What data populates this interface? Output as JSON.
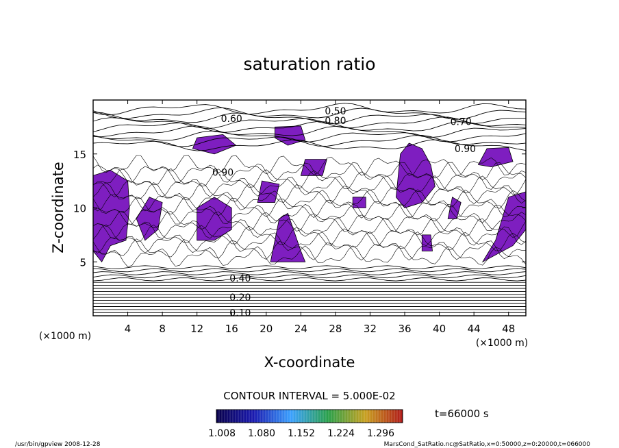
{
  "chart_data": {
    "type": "heatmap",
    "title": "saturation ratio",
    "xlabel": "X-coordinate",
    "ylabel": "Z-coordinate",
    "x_unit_left": "(×1000 m)",
    "x_unit_right": "(×1000 m)",
    "xlim": [
      0,
      50
    ],
    "ylim": [
      0,
      20
    ],
    "x_ticks": [
      "4",
      "8",
      "12",
      "16",
      "20",
      "24",
      "28",
      "32",
      "36",
      "40",
      "44",
      "48"
    ],
    "y_ticks": [
      "5",
      "10",
      "15"
    ],
    "contour_labels": [
      {
        "text": "0.50",
        "x": 28.0,
        "z": 19.0
      },
      {
        "text": "0.60",
        "x": 16.0,
        "z": 18.3
      },
      {
        "text": "0.80",
        "x": 28.0,
        "z": 18.1
      },
      {
        "text": "0.70",
        "x": 42.5,
        "z": 18.0
      },
      {
        "text": "0.90",
        "x": 43.0,
        "z": 15.5
      },
      {
        "text": "0.90",
        "x": 15.0,
        "z": 13.3
      },
      {
        "text": "0.40",
        "x": 17.0,
        "z": 3.5
      },
      {
        "text": "0.20",
        "x": 17.0,
        "z": 1.7
      },
      {
        "text": "0.10",
        "x": 17.0,
        "z": 0.3
      }
    ],
    "supersaturated_regions_color": "#7e1ec0",
    "grid": false,
    "contour_interval_text": "CONTOUR INTERVAL = 5.000E-02",
    "colorbar": {
      "min": 1.008,
      "max": 1.296,
      "tick_labels": [
        "1.008",
        "1.080",
        "1.152",
        "1.224",
        "1.296"
      ],
      "colors": [
        "#08004a",
        "#1a1ab0",
        "#3aa0ff",
        "#2aa04a",
        "#c8a020",
        "#b01818"
      ]
    },
    "time_text": "t=66000 s"
  },
  "footer": {
    "left": "/usr/bin/gpview   2008-12-28",
    "right": "MarsCond_SatRatio.nc@SatRatio,x=0:50000,z=0:20000,t=066000"
  }
}
